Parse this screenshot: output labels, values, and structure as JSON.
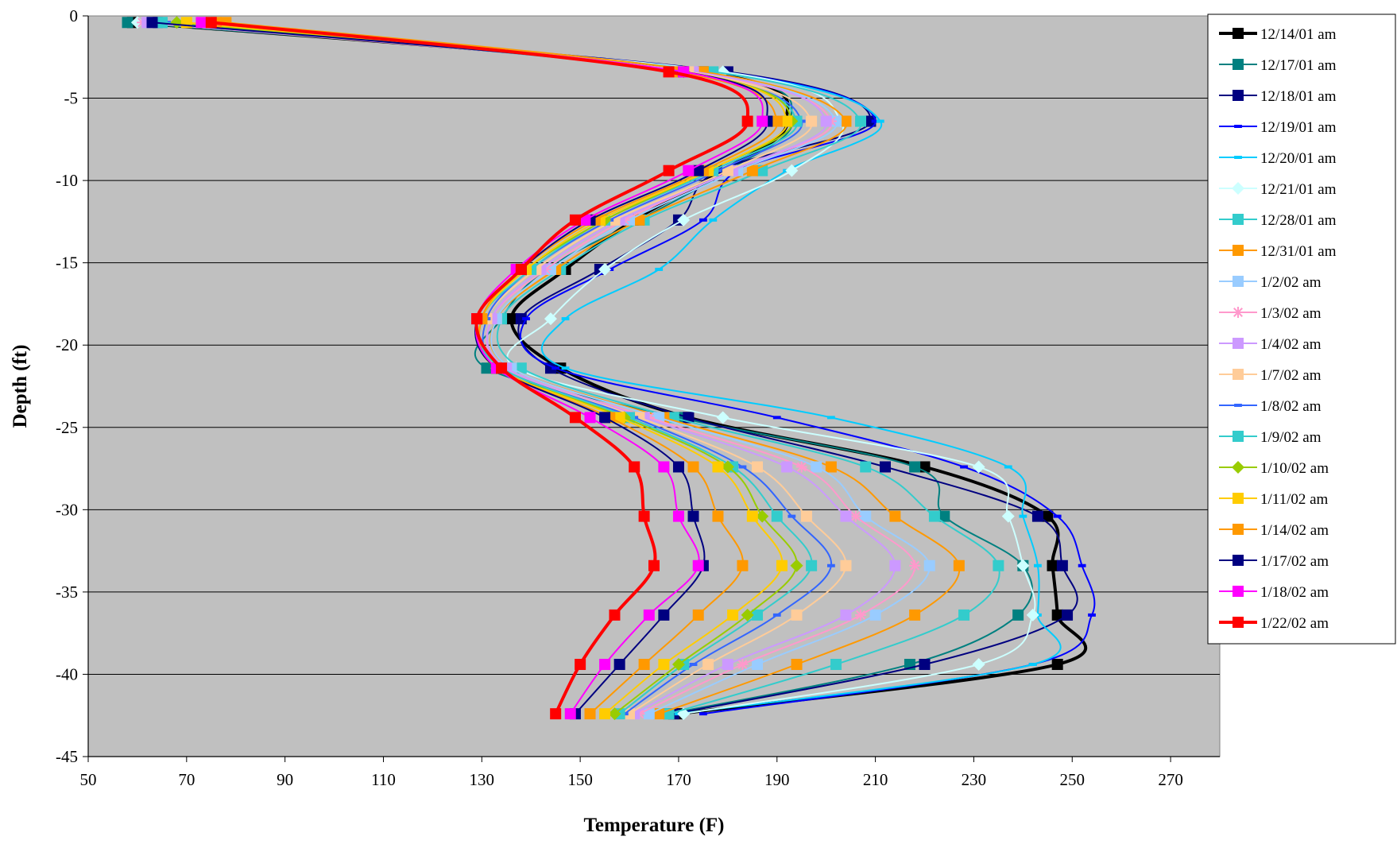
{
  "chart_data": {
    "type": "line",
    "title": "",
    "xlabel": "Temperature (F)",
    "ylabel": "Depth (ft)",
    "xlim": [
      50,
      280
    ],
    "ylim": [
      -45,
      0
    ],
    "xticks": [
      50,
      70,
      90,
      110,
      130,
      150,
      170,
      190,
      210,
      230,
      250,
      270
    ],
    "yticks": [
      0,
      -5,
      -10,
      -15,
      -20,
      -25,
      -30,
      -35,
      -40,
      -45
    ],
    "grid": "horizontal",
    "legend_position": "right",
    "plot_background": "#c0c0c0",
    "depths": [
      -0.4,
      -3.4,
      -6.4,
      -9.4,
      -12.4,
      -15.4,
      -18.4,
      -21.4,
      -24.4,
      -27.4,
      -30.4,
      -33.4,
      -36.4,
      -39.4,
      -42.4
    ],
    "series": [
      {
        "name": "12/14/01 am",
        "color": "#000000",
        "marker": "square",
        "values": [
          59,
          175,
          192,
          179,
          161,
          147,
          136,
          146,
          172,
          220,
          245,
          246,
          247,
          247,
          170
        ]
      },
      {
        "name": "12/17/01 am",
        "color": "#008080",
        "marker": "square",
        "values": [
          58,
          175,
          193,
          180,
          162,
          143,
          134,
          131,
          170,
          218,
          224,
          240,
          239,
          217,
          168
        ]
      },
      {
        "name": "12/18/01 am",
        "color": "#000080",
        "marker": "square",
        "values": [
          64,
          180,
          209,
          178,
          170,
          154,
          138,
          144,
          172,
          212,
          243,
          248,
          249,
          220,
          169
        ]
      },
      {
        "name": "12/19/01 am",
        "color": "#0000ff",
        "marker": "dash",
        "values": [
          65,
          179,
          210,
          182,
          175,
          156,
          139,
          145,
          190,
          228,
          247,
          252,
          254,
          242,
          175
        ]
      },
      {
        "name": "12/20/01 am",
        "color": "#00ccff",
        "marker": "dash",
        "values": [
          62,
          178,
          211,
          192,
          177,
          166,
          147,
          147,
          201,
          237,
          240,
          243,
          243,
          242,
          170
        ]
      },
      {
        "name": "12/21/01 am",
        "color": "#ccffff",
        "marker": "diamond",
        "values": [
          60,
          179,
          203,
          193,
          171,
          155,
          144,
          137,
          179,
          231,
          237,
          240,
          242,
          231,
          171
        ]
      },
      {
        "name": "12/28/01 am",
        "color": "#33cccc",
        "marker": "square",
        "values": [
          65,
          177,
          207,
          187,
          163,
          146,
          134,
          138,
          169,
          208,
          222,
          235,
          228,
          202,
          168
        ]
      },
      {
        "name": "12/31/01 am",
        "color": "#ff9900",
        "marker": "square",
        "values": [
          78,
          175,
          204,
          185,
          162,
          145,
          133,
          136,
          167,
          201,
          214,
          227,
          218,
          194,
          166
        ]
      },
      {
        "name": "1/2/02 am",
        "color": "#99ccff",
        "marker": "square",
        "values": [
          62,
          173,
          202,
          182,
          160,
          144,
          133,
          136,
          166,
          198,
          208,
          221,
          210,
          186,
          164
        ]
      },
      {
        "name": "1/3/02 am",
        "color": "#ff99cc",
        "marker": "asterisk",
        "values": [
          61,
          172,
          201,
          181,
          159,
          143,
          132,
          135,
          164,
          195,
          206,
          218,
          207,
          183,
          162
        ]
      },
      {
        "name": "1/4/02 am",
        "color": "#cc99ff",
        "marker": "square",
        "values": [
          62,
          173,
          200,
          181,
          158,
          142,
          132,
          135,
          163,
          192,
          204,
          214,
          204,
          180,
          161
        ]
      },
      {
        "name": "1/7/02 am",
        "color": "#ffcc99",
        "marker": "square",
        "values": [
          73,
          172,
          197,
          180,
          157,
          141,
          131,
          134,
          162,
          186,
          196,
          204,
          194,
          176,
          160
        ]
      },
      {
        "name": "1/8/02 am",
        "color": "#3366ff",
        "marker": "dash",
        "values": [
          66,
          170,
          195,
          178,
          156,
          140,
          131,
          134,
          161,
          183,
          193,
          201,
          190,
          173,
          159
        ]
      },
      {
        "name": "1/9/02 am",
        "color": "#33cccc",
        "marker": "square",
        "values": [
          65,
          170,
          194,
          177,
          155,
          140,
          130,
          134,
          160,
          181,
          190,
          197,
          186,
          171,
          158
        ]
      },
      {
        "name": "1/10/02 am",
        "color": "#99cc00",
        "marker": "diamond",
        "values": [
          68,
          171,
          193,
          176,
          155,
          139,
          130,
          133,
          159,
          180,
          187,
          194,
          184,
          170,
          157
        ]
      },
      {
        "name": "1/11/02 am",
        "color": "#ffcc00",
        "marker": "square",
        "values": [
          70,
          171,
          192,
          176,
          154,
          139,
          130,
          133,
          158,
          178,
          185,
          191,
          181,
          167,
          155
        ]
      },
      {
        "name": "1/14/02 am",
        "color": "#ff9900",
        "marker": "square",
        "values": [
          76,
          170,
          190,
          175,
          153,
          138,
          130,
          133,
          156,
          173,
          178,
          183,
          174,
          163,
          152
        ]
      },
      {
        "name": "1/17/02 am",
        "color": "#000080",
        "marker": "square",
        "values": [
          63,
          171,
          188,
          174,
          152,
          138,
          129,
          133,
          155,
          170,
          173,
          175,
          167,
          158,
          149
        ]
      },
      {
        "name": "1/18/02 am",
        "color": "#ff00ff",
        "marker": "square",
        "values": [
          73,
          171,
          187,
          172,
          151,
          137,
          129,
          133,
          152,
          167,
          170,
          174,
          164,
          155,
          148
        ]
      },
      {
        "name": "1/22/02 am",
        "color": "#ff0000",
        "marker": "square",
        "values": [
          75,
          168,
          184,
          168,
          149,
          138,
          129,
          134,
          149,
          161,
          163,
          165,
          157,
          150,
          145
        ]
      }
    ]
  }
}
